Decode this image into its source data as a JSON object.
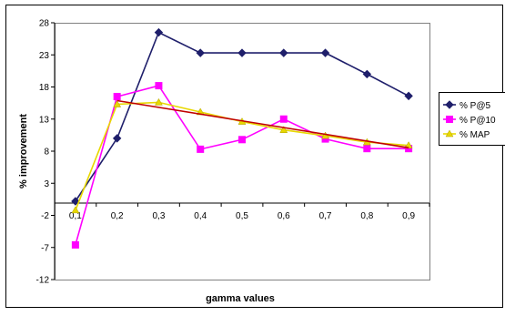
{
  "chart_data": {
    "type": "line",
    "title": "",
    "xlabel": "gamma values",
    "ylabel": "% improvement",
    "categories": [
      "0,1",
      "0,2",
      "0,3",
      "0,4",
      "0,5",
      "0,6",
      "0,7",
      "0,8",
      "0,9"
    ],
    "yticks": [
      "28",
      "23",
      "18",
      "13",
      "8",
      "3",
      "-2",
      "-7",
      "-12"
    ],
    "ylim": [
      -12,
      28
    ],
    "grid": false,
    "legend_position": "right",
    "series": [
      {
        "name": "% P@5",
        "color": "#1f1f6b",
        "marker": "diamond",
        "values": [
          0.2,
          10.0,
          26.5,
          23.3,
          23.3,
          23.3,
          23.3,
          20.0,
          16.6
        ]
      },
      {
        "name": "% P@10",
        "color": "#ff00ff",
        "marker": "square",
        "values": [
          -6.6,
          16.5,
          18.2,
          8.3,
          9.8,
          13.0,
          9.9,
          8.4,
          8.4
        ]
      },
      {
        "name": "% MAP",
        "color": "#e8d800",
        "marker": "triangle",
        "values": [
          -1.2,
          15.3,
          15.6,
          14.1,
          12.6,
          11.3,
          10.4,
          9.4,
          8.9
        ]
      }
    ]
  }
}
